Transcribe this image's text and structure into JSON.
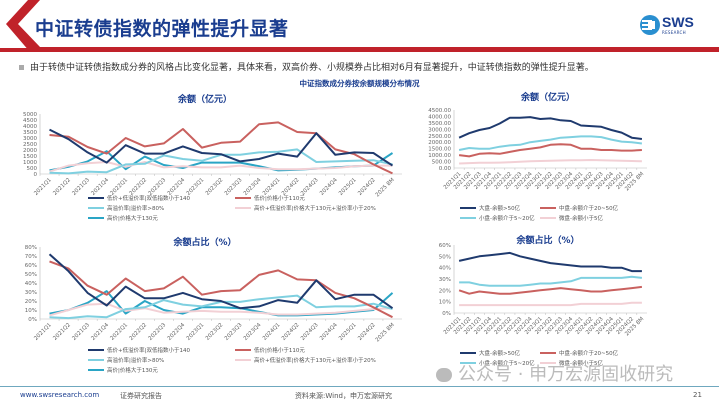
{
  "header": {
    "title": "中证转债指数的弹性提升显著",
    "logo_text": "SWS",
    "logo_sub": "RESEARCH",
    "colors": {
      "brand_red": "#c0222a",
      "brand_blue": "#1a3d8f"
    }
  },
  "bullet": "由于转债中证转债指数成分券的风格占比变化显著，具体来看，双高价券、小规模券占比相对6月有显著提升，中证转债指数的弹性提升显著。",
  "section_title": "中证指数成分券按余额规模分布情况",
  "footer": {
    "website": "www.swsresearch.com",
    "report_type": "证券研究报告",
    "source": "资料来源:Wind，申万宏源研究",
    "page": "21",
    "watermark": "公众号 · 申万宏源固收研究"
  },
  "chart_data": [
    {
      "type": "line",
      "title": "余额（亿元）",
      "categories": [
        "2021Q1",
        "2021Q2",
        "2021Q3",
        "2021Q4",
        "2022Q1",
        "2022Q2",
        "2022Q3",
        "2022Q4",
        "2023Q1",
        "2023Q2",
        "2023Q3",
        "2023Q4",
        "2024Q1",
        "2024Q2",
        "2024Q3",
        "2024Q4",
        "2025Q1",
        "2024Q2",
        "2025 8M"
      ],
      "ylim": [
        0,
        5000
      ],
      "yticks": [
        "0",
        "500",
        "1000",
        "1500",
        "2000",
        "2500",
        "3000",
        "3500",
        "4000",
        "4500",
        "5000"
      ],
      "legend_position": "bottom",
      "series": [
        {
          "name": "低价+低溢价率|双低指数小于140",
          "color": "#1f3a6e",
          "values": [
            3700,
            2900,
            1800,
            950,
            2400,
            1700,
            1700,
            2300,
            1750,
            1650,
            1050,
            1250,
            1700,
            1450,
            3400,
            1600,
            1800,
            1750,
            700
          ]
        },
        {
          "name": "低价|价格小于110元",
          "color": "#c9615f",
          "values": [
            3250,
            3100,
            2250,
            1700,
            3000,
            2300,
            2550,
            3750,
            2200,
            2600,
            2700,
            4150,
            4300,
            3500,
            3400,
            2050,
            1650,
            800,
            50
          ]
        },
        {
          "name": "高溢价率|溢价率>80%",
          "color": "#7fd0e0",
          "values": [
            100,
            50,
            200,
            150,
            800,
            850,
            1550,
            1250,
            1100,
            1600,
            1600,
            1800,
            1850,
            2050,
            1000,
            1050,
            1100,
            1150,
            800
          ]
        },
        {
          "name": "高价+低溢价率|价格大于130元+溢价率小于20%",
          "color": "#f2d0d5",
          "values": [
            200,
            700,
            900,
            1000,
            600,
            1000,
            550,
            650,
            550,
            550,
            700,
            500,
            400,
            400,
            450,
            500,
            650,
            700,
            700
          ]
        },
        {
          "name": "高价|价格大于130元",
          "color": "#2aa5c5",
          "values": [
            300,
            600,
            1050,
            1900,
            400,
            1450,
            750,
            500,
            950,
            950,
            950,
            650,
            300,
            350,
            450,
            550,
            650,
            700,
            1750
          ]
        }
      ]
    },
    {
      "type": "line",
      "title": "余额（亿元）",
      "categories": [
        "2021Q1",
        "2021Q2",
        "2021Q3",
        "2021Q4",
        "2022Q1",
        "2022Q2",
        "2022Q3",
        "2022Q4",
        "2023Q1",
        "2023Q2",
        "2023Q3",
        "2023Q4",
        "2024Q1",
        "2024Q2",
        "2024Q3",
        "2024Q4",
        "2025Q1",
        "2024Q2",
        "2025 8M"
      ],
      "ylim": [
        0,
        4500
      ],
      "yticks": [
        "0.00",
        "500.00",
        "1000.00",
        "1500.00",
        "2000.00",
        "2500.00",
        "3000.00",
        "3500.00",
        "4000.00",
        "4500.00"
      ],
      "legend_position": "bottom",
      "series": [
        {
          "name": "大盘-余额>50亿",
          "color": "#1f3a6e",
          "values": [
            2350,
            2700,
            2950,
            3100,
            3450,
            3900,
            3900,
            3950,
            3800,
            3850,
            3700,
            3650,
            3300,
            3250,
            3200,
            2950,
            2750,
            2350,
            2250
          ]
        },
        {
          "name": "中盘-余额介于20~50亿",
          "color": "#c9615f",
          "values": [
            1000,
            900,
            1100,
            1150,
            1100,
            1250,
            1400,
            1500,
            1600,
            1800,
            1850,
            1800,
            1500,
            1500,
            1400,
            1400,
            1350,
            1350,
            1400
          ]
        },
        {
          "name": "小盘-余额介于5~20亿",
          "color": "#7fd0e0",
          "values": [
            1400,
            1550,
            1500,
            1500,
            1650,
            1750,
            1800,
            2000,
            2100,
            2200,
            2350,
            2400,
            2450,
            2450,
            2400,
            2200,
            2050,
            2000,
            1900
          ]
        },
        {
          "name": "微盘-余额小于5亿",
          "color": "#f2d0d5",
          "values": [
            350,
            380,
            400,
            400,
            420,
            450,
            480,
            520,
            540,
            560,
            580,
            600,
            600,
            620,
            600,
            580,
            560,
            540,
            520
          ]
        }
      ]
    },
    {
      "type": "line",
      "title": "余额占比（%）",
      "categories": [
        "2021Q1",
        "2021Q2",
        "2021Q3",
        "2021Q4",
        "2022Q1",
        "2022Q2",
        "2022Q3",
        "2022Q4",
        "2023Q1",
        "2023Q2",
        "2023Q3",
        "2023Q4",
        "2024Q1",
        "2024Q2",
        "2024Q3",
        "2024Q4",
        "2025Q1",
        "2024Q2",
        "2025 8M"
      ],
      "ylim": [
        0,
        80
      ],
      "yticks": [
        "0%",
        "10%",
        "20%",
        "30%",
        "40%",
        "50%",
        "60%",
        "70%",
        "80%"
      ],
      "legend_position": "bottom",
      "series": [
        {
          "name": "低价+低溢价率|双低指数小于140",
          "color": "#1f3a6e",
          "values": [
            72,
            53,
            29,
            15,
            36,
            23,
            23,
            29,
            22,
            20,
            12,
            14,
            21,
            18,
            43,
            22,
            27,
            27,
            12
          ]
        },
        {
          "name": "低价|价格小于110元",
          "color": "#c9615f",
          "values": [
            64,
            56,
            37,
            27,
            45,
            31,
            34,
            47,
            27,
            31,
            32,
            49,
            54,
            44,
            43,
            29,
            23,
            13,
            2
          ]
        },
        {
          "name": "高溢价率|溢价率>80%",
          "color": "#7fd0e0",
          "values": [
            2,
            1,
            3,
            2,
            11,
            13,
            21,
            16,
            14,
            19,
            19,
            22,
            24,
            26,
            13,
            14,
            14,
            17,
            11
          ]
        },
        {
          "name": "高价+低溢价率|价格大于130元+溢价率小于20%",
          "color": "#f2d0d5",
          "values": [
            4,
            10,
            16,
            17,
            9,
            12,
            7,
            8,
            9,
            8,
            8,
            7,
            5,
            5,
            6,
            7,
            9,
            11,
            12
          ]
        },
        {
          "name": "高价|价格大于130元",
          "color": "#2aa5c5",
          "values": [
            6,
            10,
            18,
            31,
            6,
            20,
            10,
            6,
            13,
            13,
            12,
            8,
            4,
            4,
            5,
            6,
            8,
            10,
            29
          ]
        }
      ]
    },
    {
      "type": "line",
      "title": "余额占比（%）",
      "categories": [
        "2021Q1",
        "2021Q2",
        "2021Q3",
        "2021Q4",
        "2022Q1",
        "2022Q2",
        "2022Q3",
        "2022Q4",
        "2023Q1",
        "2023Q2",
        "2023Q3",
        "2023Q4",
        "2024Q1",
        "2024Q2",
        "2024Q3",
        "2024Q4",
        "2025Q1",
        "2024Q2",
        "2025 8M"
      ],
      "ylim": [
        0,
        60
      ],
      "yticks": [
        "0%",
        "10%",
        "20%",
        "30%",
        "40%",
        "50%",
        "60%"
      ],
      "legend_position": "bottom",
      "series": [
        {
          "name": "大盘-余额>50亿",
          "color": "#1f3a6e",
          "values": [
            46,
            48,
            50,
            51,
            52,
            53,
            50,
            48,
            46,
            44,
            43,
            42,
            41,
            41,
            41,
            40,
            40,
            37,
            37
          ]
        },
        {
          "name": "中盘-余额介于20~50亿",
          "color": "#c9615f",
          "values": [
            20,
            17,
            19,
            18,
            17,
            17,
            18,
            19,
            20,
            21,
            22,
            21,
            20,
            19,
            19,
            20,
            21,
            22,
            23
          ]
        },
        {
          "name": "小盘-余额介于5~20亿",
          "color": "#7fd0e0",
          "values": [
            27,
            27,
            25,
            24,
            24,
            24,
            24,
            25,
            26,
            26,
            27,
            28,
            31,
            31,
            31,
            31,
            31,
            32,
            31
          ]
        },
        {
          "name": "微盘-余额小于5亿",
          "color": "#f2d0d5",
          "values": [
            7,
            7,
            7,
            7,
            7,
            7,
            7,
            7,
            7,
            7,
            7,
            7,
            8,
            8,
            8,
            8,
            8,
            9,
            9
          ]
        }
      ]
    }
  ]
}
